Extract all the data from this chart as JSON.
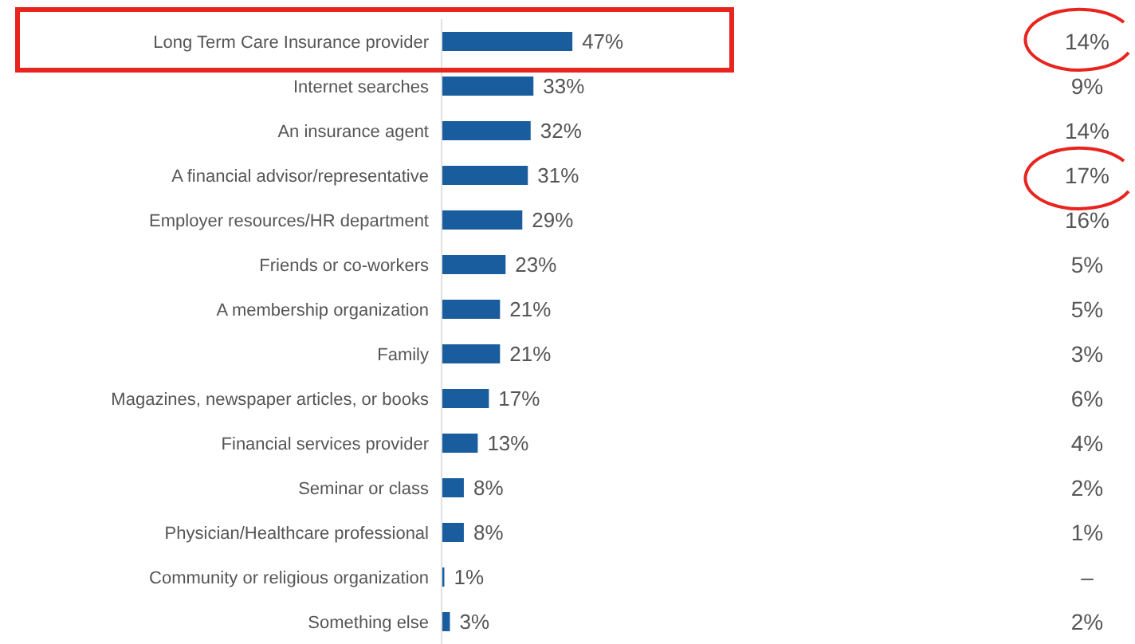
{
  "chart_data": {
    "type": "bar",
    "orientation": "horizontal",
    "categories": [
      "Long Term Care Insurance provider",
      "Internet searches",
      "An insurance agent",
      "A financial advisor/representative",
      "Employer resources/HR department",
      "Friends or co-workers",
      "A membership organization",
      "Family",
      "Magazines, newspaper articles, or books",
      "Financial services provider",
      "Seminar or class",
      "Physician/Healthcare professional",
      "Community or religious organization",
      "Something else"
    ],
    "values": [
      47,
      33,
      32,
      31,
      29,
      23,
      21,
      21,
      17,
      13,
      8,
      8,
      1,
      3
    ],
    "value_labels": [
      "47%",
      "33%",
      "32%",
      "31%",
      "29%",
      "23%",
      "21%",
      "21%",
      "17%",
      "13%",
      "8%",
      "8%",
      "1%",
      "3%"
    ],
    "color": "#1a5d9e",
    "annotations": [
      "14%",
      "9%",
      "14%",
      "17%",
      "16%",
      "5%",
      "5%",
      "3%",
      "6%",
      "4%",
      "2%",
      "1%",
      "–",
      "2%"
    ]
  }
}
